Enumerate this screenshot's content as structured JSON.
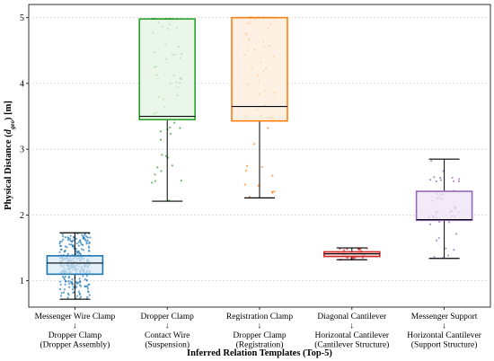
{
  "chart_data": {
    "type": "box",
    "xlabel": "Inferred Relation Templates (Top-5)",
    "ylabel_parts": [
      "Physical Distance (",
      "d",
      "geo",
      ") [m]"
    ],
    "ylim": [
      0.6,
      5.2
    ],
    "yticks": [
      1,
      2,
      3,
      4,
      5
    ],
    "grid": true,
    "categories": [
      {
        "lines": [
          "Messenger Wire Clamp",
          "↓",
          "Dropper Clamp",
          "(Dropper Assembly)"
        ]
      },
      {
        "lines": [
          "Dropper Clamp",
          "↓",
          "Contact Wire",
          "(Suspension)"
        ]
      },
      {
        "lines": [
          "Registration Clamp",
          "↓",
          "Dropper Clamp",
          "(Registration)"
        ]
      },
      {
        "lines": [
          "Diagonal Cantilever",
          "↓",
          "Horizontal Cantilever",
          "(Cantilever Structure)"
        ]
      },
      {
        "lines": [
          "Messenger Support",
          "↓",
          "Horizontal Cantilever",
          "(Support Structure)"
        ]
      }
    ],
    "boxes": [
      {
        "whisker_low": 0.72,
        "q1": 1.1,
        "median": 1.27,
        "q3": 1.38,
        "whisker_high": 1.73,
        "color": "#1f77b4",
        "fill": "#d8e8f5",
        "n_points": 320
      },
      {
        "whisker_low": 2.21,
        "q1": 3.45,
        "median": 3.5,
        "q3": 4.98,
        "whisker_high": 4.98,
        "color": "#2ca02c",
        "fill": "#e2f3e2",
        "n_points": 70
      },
      {
        "whisker_low": 2.26,
        "q1": 3.43,
        "median": 3.65,
        "q3": 5.0,
        "whisker_high": 5.0,
        "color": "#ff7f0e",
        "fill": "#fdebd8",
        "n_points": 60
      },
      {
        "whisker_low": 1.32,
        "q1": 1.37,
        "median": 1.41,
        "q3": 1.44,
        "whisker_high": 1.5,
        "color": "#d62728",
        "fill": "#f8dede",
        "n_points": 40
      },
      {
        "whisker_low": 1.34,
        "q1": 1.92,
        "median": 1.93,
        "q3": 2.36,
        "whisker_high": 2.85,
        "color": "#9467bd",
        "fill": "#efe3f6",
        "n_points": 45
      }
    ]
  }
}
